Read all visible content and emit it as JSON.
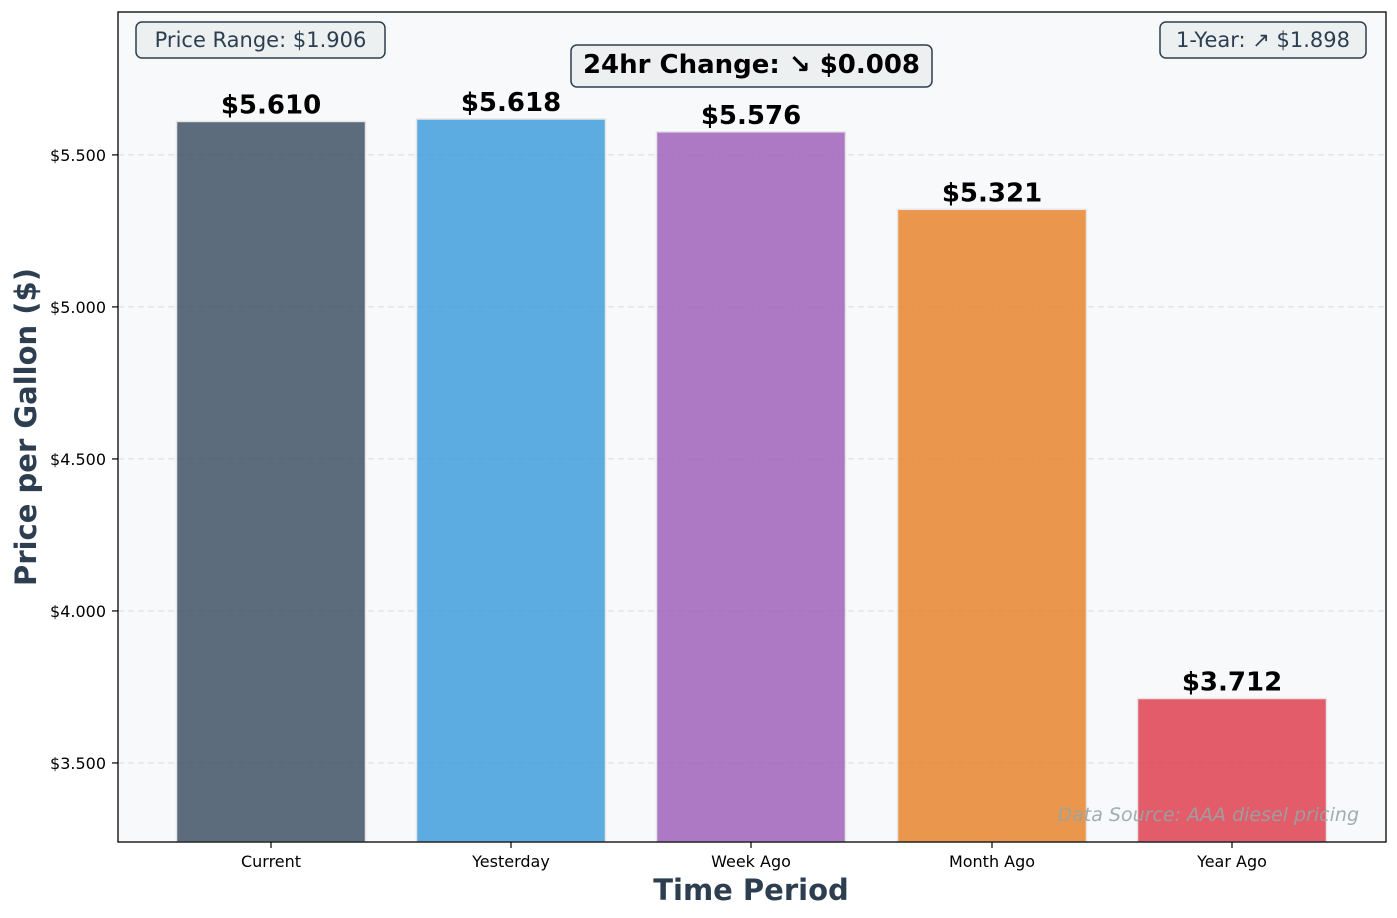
{
  "chart_data": {
    "type": "bar",
    "categories": [
      "Current",
      "Yesterday",
      "Week Ago",
      "Month Ago",
      "Year Ago"
    ],
    "values": [
      5.61,
      5.618,
      5.576,
      5.321,
      3.712
    ],
    "value_labels": [
      "$5.610",
      "$5.618",
      "$5.576",
      "$5.321",
      "$3.712"
    ],
    "colors": [
      "#34495e",
      "#3498db",
      "#9b59b6",
      "#e67e22",
      "#dc3545"
    ],
    "xlabel": "Time Period",
    "ylabel": "Price per Gallon ($)",
    "ylim": [
      3.24,
      5.97
    ],
    "yticks": [
      3.5,
      4.0,
      4.5,
      5.0,
      5.5
    ],
    "ytick_labels": [
      "$3.500",
      "$4.000",
      "$4.500",
      "$5.000",
      "$5.500"
    ],
    "grid": "horizontal dashed",
    "annotations": {
      "price_range": "Price Range: $1.906",
      "change_24hr": "24hr Change: ↘ $0.008",
      "one_year": "1-Year: ↗ $1.898",
      "source": "Data Source: AAA diesel pricing"
    }
  }
}
